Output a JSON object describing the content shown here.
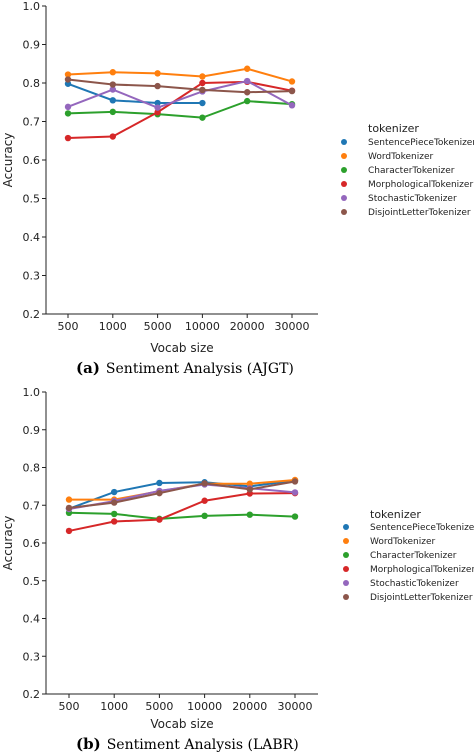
{
  "chart_data": [
    {
      "type": "line",
      "caption_label": "(a)",
      "caption_text": "Sentiment Analysis (AJGT)",
      "xlabel": "Vocab size",
      "ylabel": "Accuracy",
      "categories": [
        "500",
        "1000",
        "5000",
        "10000",
        "20000",
        "30000"
      ],
      "ylim": [
        0.2,
        1.0
      ],
      "yticks": [
        "0.2",
        "0.3",
        "0.4",
        "0.5",
        "0.6",
        "0.7",
        "0.8",
        "0.9",
        "1.0"
      ],
      "legend_title": "tokenizer",
      "legend_position": "right",
      "grid": false,
      "series": [
        {
          "name": "SentencePieceTokenizer",
          "color": "#1f77b4",
          "values": [
            0.798,
            0.755,
            0.748,
            0.748,
            null,
            null
          ]
        },
        {
          "name": "WordTokenizer",
          "color": "#ff7f0e",
          "values": [
            0.822,
            0.828,
            0.825,
            0.817,
            0.837,
            0.804
          ]
        },
        {
          "name": "CharacterTokenizer",
          "color": "#2ca02c",
          "values": [
            0.721,
            0.725,
            0.719,
            0.71,
            0.753,
            0.745
          ]
        },
        {
          "name": "MorphologicalTokenizer",
          "color": "#d62728",
          "values": [
            0.657,
            0.661,
            0.724,
            0.8,
            0.803,
            0.78
          ]
        },
        {
          "name": "StochasticTokenizer",
          "color": "#9467bd",
          "values": [
            0.738,
            0.783,
            0.736,
            0.778,
            0.805,
            0.742
          ]
        },
        {
          "name": "DisjointLetterTokenizer",
          "color": "#8c564b",
          "values": [
            0.809,
            0.796,
            0.792,
            0.782,
            0.776,
            0.779
          ]
        }
      ]
    },
    {
      "type": "line",
      "caption_label": "(b)",
      "caption_text": "Sentiment Analysis (LABR)",
      "xlabel": "Vocab size",
      "ylabel": "Accuracy",
      "categories": [
        "500",
        "1000",
        "5000",
        "10000",
        "20000",
        "30000"
      ],
      "ylim": [
        0.2,
        1.0
      ],
      "yticks": [
        "0.2",
        "0.3",
        "0.4",
        "0.5",
        "0.6",
        "0.7",
        "0.8",
        "0.9",
        "1.0"
      ],
      "legend_title": "tokenizer",
      "legend_position": "right",
      "grid": false,
      "series": [
        {
          "name": "SentencePieceTokenizer",
          "color": "#1f77b4",
          "values": [
            0.691,
            0.735,
            0.759,
            0.761,
            0.75,
            0.766
          ]
        },
        {
          "name": "WordTokenizer",
          "color": "#ff7f0e",
          "values": [
            0.715,
            0.715,
            0.737,
            0.757,
            0.757,
            0.767
          ]
        },
        {
          "name": "CharacterTokenizer",
          "color": "#2ca02c",
          "values": [
            0.68,
            0.677,
            0.664,
            0.672,
            0.675,
            0.67
          ]
        },
        {
          "name": "MorphologicalTokenizer",
          "color": "#d62728",
          "values": [
            0.632,
            0.657,
            0.662,
            0.712,
            0.731,
            0.732
          ]
        },
        {
          "name": "StochasticTokenizer",
          "color": "#9467bd",
          "values": [
            0.69,
            0.711,
            0.738,
            0.755,
            0.745,
            0.734
          ]
        },
        {
          "name": "DisjointLetterTokenizer",
          "color": "#8c564b",
          "values": [
            0.693,
            0.707,
            0.732,
            0.758,
            0.742,
            0.763
          ]
        }
      ]
    }
  ]
}
